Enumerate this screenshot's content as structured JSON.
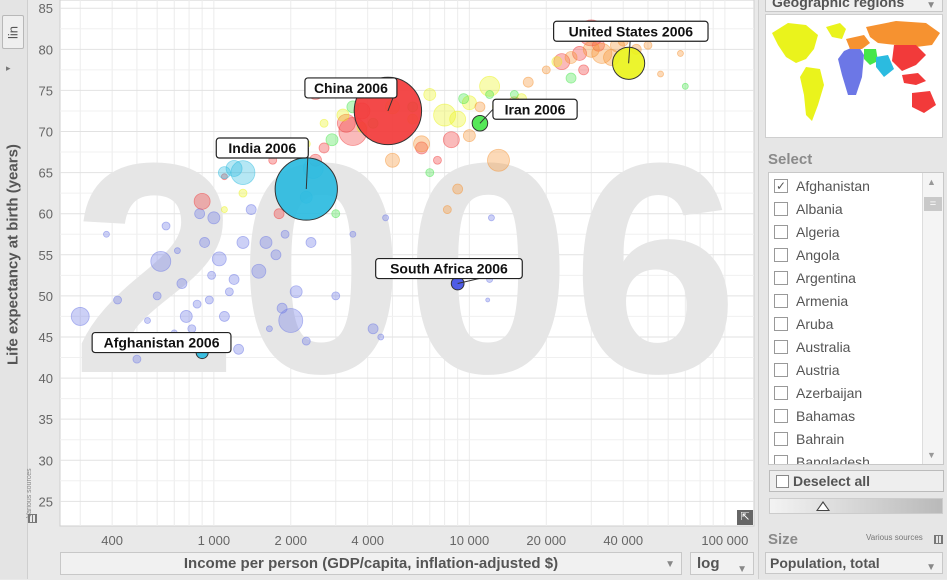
{
  "y_axis": {
    "scale_button": "lin",
    "title": "Life expectancy at birth (years)",
    "various_sources": "Various sources"
  },
  "x_axis": {
    "title": "Income per person (GDP/capita, inflation-adjusted $)",
    "scale": "log"
  },
  "right_panel": {
    "color_indicator": "Geographic regions",
    "select_label": "Select",
    "countries": [
      {
        "label": "Afghanistan",
        "checked": true
      },
      {
        "label": "Albania",
        "checked": false
      },
      {
        "label": "Algeria",
        "checked": false
      },
      {
        "label": "Angola",
        "checked": false
      },
      {
        "label": "Argentina",
        "checked": false
      },
      {
        "label": "Armenia",
        "checked": false
      },
      {
        "label": "Aruba",
        "checked": false
      },
      {
        "label": "Australia",
        "checked": false
      },
      {
        "label": "Austria",
        "checked": false
      },
      {
        "label": "Azerbaijan",
        "checked": false
      },
      {
        "label": "Bahamas",
        "checked": false
      },
      {
        "label": "Bahrain",
        "checked": false
      },
      {
        "label": "Bangladesh",
        "checked": false
      }
    ],
    "deselect_all": "Deselect all",
    "size_label": "Size",
    "size_sources": "Various sources",
    "size_indicator": "Population, total"
  },
  "colors": {
    "asia_east": "#f23a3a",
    "asia_south": "#2bbbe0",
    "africa": "#6c77e6",
    "americas": "#eaf31c",
    "europe": "#f69230",
    "middle_east": "#46e64a"
  },
  "chart_data": {
    "type": "scatter",
    "year_watermark": "2006",
    "xlabel": "Income per person (GDP/capita, inflation-adjusted $)",
    "ylabel": "Life expectancy at birth (years)",
    "x_scale": "log",
    "xlim": [
      250,
      130000
    ],
    "ylim": [
      22,
      86
    ],
    "x_ticks": [
      {
        "v": 400,
        "label": "400"
      },
      {
        "v": 1000,
        "label": "1 000"
      },
      {
        "v": 2000,
        "label": "2 000"
      },
      {
        "v": 4000,
        "label": "4 000"
      },
      {
        "v": 10000,
        "label": "10 000"
      },
      {
        "v": 20000,
        "label": "20 000"
      },
      {
        "v": 40000,
        "label": "40 000"
      },
      {
        "v": 100000,
        "label": "100 000"
      }
    ],
    "y_ticks": [
      25,
      30,
      35,
      40,
      45,
      50,
      55,
      60,
      65,
      70,
      75,
      80,
      85
    ],
    "labeled_points": [
      {
        "label": "United States 2006",
        "x": 42000,
        "y": 78.3,
        "pop": 299,
        "color": "#eaf31c"
      },
      {
        "label": "China 2006",
        "x": 4800,
        "y": 72.5,
        "pop": 1311,
        "color": "#f23a3a"
      },
      {
        "label": "Iran 2006",
        "x": 11000,
        "y": 71.0,
        "pop": 70,
        "color": "#46e64a"
      },
      {
        "label": "India 2006",
        "x": 2300,
        "y": 63.0,
        "pop": 1121,
        "color": "#2bbbe0"
      },
      {
        "label": "South Africa 2006",
        "x": 9000,
        "y": 51.5,
        "pop": 47,
        "color": "#4150e6"
      },
      {
        "label": "Afghanistan 2006",
        "x": 900,
        "y": 43.1,
        "pop": 26,
        "color": "#2bbbe0"
      }
    ],
    "other_points": [
      {
        "x": 300,
        "y": 47.5,
        "r": 9,
        "c": "#6c77e6"
      },
      {
        "x": 380,
        "y": 57.5,
        "r": 3,
        "c": "#6c77e6"
      },
      {
        "x": 420,
        "y": 49.5,
        "r": 4,
        "c": "#6c77e6"
      },
      {
        "x": 500,
        "y": 42.3,
        "r": 4,
        "c": "#6c77e6"
      },
      {
        "x": 550,
        "y": 47.0,
        "r": 3,
        "c": "#6c77e6"
      },
      {
        "x": 600,
        "y": 50.0,
        "r": 4,
        "c": "#6c77e6"
      },
      {
        "x": 620,
        "y": 54.2,
        "r": 10,
        "c": "#6c77e6"
      },
      {
        "x": 650,
        "y": 58.5,
        "r": 4,
        "c": "#6c77e6"
      },
      {
        "x": 700,
        "y": 45.5,
        "r": 3,
        "c": "#6c77e6"
      },
      {
        "x": 720,
        "y": 55.5,
        "r": 3,
        "c": "#6c77e6"
      },
      {
        "x": 750,
        "y": 51.5,
        "r": 5,
        "c": "#6c77e6"
      },
      {
        "x": 780,
        "y": 47.5,
        "r": 6,
        "c": "#6c77e6"
      },
      {
        "x": 820,
        "y": 46.0,
        "r": 4,
        "c": "#6c77e6"
      },
      {
        "x": 860,
        "y": 49.0,
        "r": 4,
        "c": "#6c77e6"
      },
      {
        "x": 880,
        "y": 60.0,
        "r": 5,
        "c": "#6c77e6"
      },
      {
        "x": 920,
        "y": 56.5,
        "r": 5,
        "c": "#6c77e6"
      },
      {
        "x": 960,
        "y": 49.5,
        "r": 4,
        "c": "#6c77e6"
      },
      {
        "x": 980,
        "y": 52.5,
        "r": 4,
        "c": "#6c77e6"
      },
      {
        "x": 1000,
        "y": 59.5,
        "r": 6,
        "c": "#6c77e6"
      },
      {
        "x": 1050,
        "y": 54.5,
        "r": 7,
        "c": "#6c77e6"
      },
      {
        "x": 1100,
        "y": 47.5,
        "r": 5,
        "c": "#6c77e6"
      },
      {
        "x": 1150,
        "y": 50.5,
        "r": 4,
        "c": "#6c77e6"
      },
      {
        "x": 1200,
        "y": 52.0,
        "r": 5,
        "c": "#6c77e6"
      },
      {
        "x": 1250,
        "y": 43.5,
        "r": 5,
        "c": "#6c77e6"
      },
      {
        "x": 1300,
        "y": 56.5,
        "r": 6,
        "c": "#6c77e6"
      },
      {
        "x": 1400,
        "y": 60.5,
        "r": 5,
        "c": "#6c77e6"
      },
      {
        "x": 1500,
        "y": 53.0,
        "r": 7,
        "c": "#6c77e6"
      },
      {
        "x": 1600,
        "y": 56.5,
        "r": 6,
        "c": "#6c77e6"
      },
      {
        "x": 1650,
        "y": 46.0,
        "r": 3,
        "c": "#6c77e6"
      },
      {
        "x": 1750,
        "y": 55.0,
        "r": 5,
        "c": "#6c77e6"
      },
      {
        "x": 1850,
        "y": 48.5,
        "r": 5,
        "c": "#6c77e6"
      },
      {
        "x": 1900,
        "y": 57.5,
        "r": 4,
        "c": "#6c77e6"
      },
      {
        "x": 2000,
        "y": 47.0,
        "r": 12,
        "c": "#6c77e6"
      },
      {
        "x": 2100,
        "y": 50.5,
        "r": 6,
        "c": "#6c77e6"
      },
      {
        "x": 2300,
        "y": 44.5,
        "r": 4,
        "c": "#6c77e6"
      },
      {
        "x": 2400,
        "y": 56.5,
        "r": 5,
        "c": "#6c77e6"
      },
      {
        "x": 3000,
        "y": 50.0,
        "r": 4,
        "c": "#6c77e6"
      },
      {
        "x": 3500,
        "y": 57.5,
        "r": 3,
        "c": "#6c77e6"
      },
      {
        "x": 4200,
        "y": 46.0,
        "r": 5,
        "c": "#6c77e6"
      },
      {
        "x": 4500,
        "y": 45.0,
        "r": 3,
        "c": "#6c77e6"
      },
      {
        "x": 4700,
        "y": 59.5,
        "r": 3,
        "c": "#6c77e6"
      },
      {
        "x": 12000,
        "y": 52.0,
        "r": 3,
        "c": "#6c77e6"
      },
      {
        "x": 11800,
        "y": 49.5,
        "r": 2,
        "c": "#6c77e6"
      },
      {
        "x": 12200,
        "y": 59.5,
        "r": 3,
        "c": "#6c77e6"
      },
      {
        "x": 900,
        "y": 61.5,
        "r": 8,
        "c": "#f23a3a"
      },
      {
        "x": 1100,
        "y": 64.5,
        "r": 3,
        "c": "#f23a3a"
      },
      {
        "x": 1700,
        "y": 66.5,
        "r": 4,
        "c": "#f23a3a"
      },
      {
        "x": 1800,
        "y": 60.0,
        "r": 5,
        "c": "#f23a3a"
      },
      {
        "x": 2500,
        "y": 66.5,
        "r": 6,
        "c": "#f23a3a"
      },
      {
        "x": 2700,
        "y": 68.0,
        "r": 5,
        "c": "#f23a3a"
      },
      {
        "x": 2500,
        "y": 75.0,
        "r": 9,
        "c": "#f23a3a"
      },
      {
        "x": 3300,
        "y": 71.0,
        "r": 9,
        "c": "#f23a3a"
      },
      {
        "x": 3800,
        "y": 72.5,
        "r": 8,
        "c": "#f23a3a"
      },
      {
        "x": 3500,
        "y": 70.0,
        "r": 14,
        "c": "#f23a3a"
      },
      {
        "x": 6500,
        "y": 68.0,
        "r": 6,
        "c": "#f23a3a"
      },
      {
        "x": 8500,
        "y": 69.0,
        "r": 8,
        "c": "#f23a3a"
      },
      {
        "x": 7500,
        "y": 66.5,
        "r": 4,
        "c": "#f23a3a"
      },
      {
        "x": 23000,
        "y": 78.5,
        "r": 8,
        "c": "#f23a3a"
      },
      {
        "x": 27000,
        "y": 79.5,
        "r": 7,
        "c": "#f23a3a"
      },
      {
        "x": 30000,
        "y": 82.0,
        "r": 13,
        "c": "#f23a3a"
      },
      {
        "x": 32000,
        "y": 80.5,
        "r": 6,
        "c": "#f23a3a"
      },
      {
        "x": 28000,
        "y": 77.5,
        "r": 5,
        "c": "#f23a3a"
      },
      {
        "x": 1100,
        "y": 65.0,
        "r": 6,
        "c": "#2bbbe0"
      },
      {
        "x": 1300,
        "y": 65.0,
        "r": 12,
        "c": "#2bbbe0"
      },
      {
        "x": 2450,
        "y": 65.5,
        "r": 10,
        "c": "#2bbbe0"
      },
      {
        "x": 2300,
        "y": 62.0,
        "r": 6,
        "c": "#2bbbe0"
      },
      {
        "x": 1200,
        "y": 65.5,
        "r": 8,
        "c": "#2bbbe0"
      },
      {
        "x": 2300,
        "y": 68.5,
        "r": 4,
        "c": "#eaf31c"
      },
      {
        "x": 2700,
        "y": 71.0,
        "r": 4,
        "c": "#eaf31c"
      },
      {
        "x": 3200,
        "y": 72.0,
        "r": 6,
        "c": "#eaf31c"
      },
      {
        "x": 3800,
        "y": 70.5,
        "r": 5,
        "c": "#eaf31c"
      },
      {
        "x": 5000,
        "y": 73.0,
        "r": 7,
        "c": "#eaf31c"
      },
      {
        "x": 6000,
        "y": 71.5,
        "r": 5,
        "c": "#eaf31c"
      },
      {
        "x": 7000,
        "y": 74.5,
        "r": 6,
        "c": "#eaf31c"
      },
      {
        "x": 8000,
        "y": 72.0,
        "r": 11,
        "c": "#eaf31c"
      },
      {
        "x": 9000,
        "y": 71.5,
        "r": 8,
        "c": "#eaf31c"
      },
      {
        "x": 10000,
        "y": 73.5,
        "r": 7,
        "c": "#eaf31c"
      },
      {
        "x": 12000,
        "y": 75.5,
        "r": 10,
        "c": "#eaf31c"
      },
      {
        "x": 13000,
        "y": 73.0,
        "r": 6,
        "c": "#eaf31c"
      },
      {
        "x": 16000,
        "y": 74.0,
        "r": 5,
        "c": "#eaf31c"
      },
      {
        "x": 22000,
        "y": 78.5,
        "r": 5,
        "c": "#eaf31c"
      },
      {
        "x": 1100,
        "y": 60.5,
        "r": 3,
        "c": "#eaf31c"
      },
      {
        "x": 1300,
        "y": 62.5,
        "r": 4,
        "c": "#eaf31c"
      },
      {
        "x": 5000,
        "y": 66.5,
        "r": 7,
        "c": "#f69230"
      },
      {
        "x": 6500,
        "y": 68.5,
        "r": 8,
        "c": "#f69230"
      },
      {
        "x": 10000,
        "y": 69.5,
        "r": 6,
        "c": "#f69230"
      },
      {
        "x": 13000,
        "y": 66.5,
        "r": 11,
        "c": "#f69230"
      },
      {
        "x": 15000,
        "y": 73.5,
        "r": 6,
        "c": "#f69230"
      },
      {
        "x": 17000,
        "y": 76.0,
        "r": 5,
        "c": "#f69230"
      },
      {
        "x": 20000,
        "y": 77.5,
        "r": 4,
        "c": "#f69230"
      },
      {
        "x": 25000,
        "y": 79.0,
        "r": 6,
        "c": "#f69230"
      },
      {
        "x": 30000,
        "y": 80.0,
        "r": 8,
        "c": "#f69230"
      },
      {
        "x": 33000,
        "y": 79.5,
        "r": 10,
        "c": "#f69230"
      },
      {
        "x": 36000,
        "y": 79.0,
        "r": 8,
        "c": "#f69230"
      },
      {
        "x": 38000,
        "y": 80.5,
        "r": 7,
        "c": "#f69230"
      },
      {
        "x": 45000,
        "y": 80.0,
        "r": 5,
        "c": "#f69230"
      },
      {
        "x": 50000,
        "y": 80.5,
        "r": 4,
        "c": "#f69230"
      },
      {
        "x": 40000,
        "y": 81.0,
        "r": 5,
        "c": "#f69230"
      },
      {
        "x": 11000,
        "y": 73.0,
        "r": 5,
        "c": "#f69230"
      },
      {
        "x": 9000,
        "y": 63.0,
        "r": 5,
        "c": "#f69230"
      },
      {
        "x": 8200,
        "y": 60.5,
        "r": 4,
        "c": "#f69230"
      },
      {
        "x": 2900,
        "y": 69.0,
        "r": 6,
        "c": "#46e64a"
      },
      {
        "x": 3500,
        "y": 73.0,
        "r": 6,
        "c": "#46e64a"
      },
      {
        "x": 4200,
        "y": 71.0,
        "r": 5,
        "c": "#46e64a"
      },
      {
        "x": 6000,
        "y": 73.0,
        "r": 5,
        "c": "#46e64a"
      },
      {
        "x": 9500,
        "y": 74.0,
        "r": 5,
        "c": "#46e64a"
      },
      {
        "x": 12000,
        "y": 74.5,
        "r": 4,
        "c": "#46e64a"
      },
      {
        "x": 15000,
        "y": 74.5,
        "r": 4,
        "c": "#46e64a"
      },
      {
        "x": 20000,
        "y": 72.5,
        "r": 7,
        "c": "#46e64a"
      },
      {
        "x": 25000,
        "y": 76.5,
        "r": 5,
        "c": "#46e64a"
      },
      {
        "x": 70000,
        "y": 75.5,
        "r": 3,
        "c": "#46e64a"
      },
      {
        "x": 67000,
        "y": 79.5,
        "r": 3,
        "c": "#f69230"
      },
      {
        "x": 56000,
        "y": 77.0,
        "r": 3,
        "c": "#f69230"
      },
      {
        "x": 3000,
        "y": 60.0,
        "r": 4,
        "c": "#46e64a"
      },
      {
        "x": 7000,
        "y": 65.0,
        "r": 4,
        "c": "#46e64a"
      }
    ]
  }
}
